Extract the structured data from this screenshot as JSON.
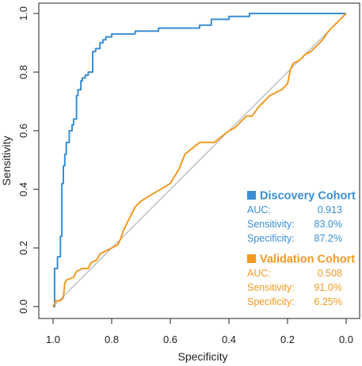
{
  "chart_data": {
    "type": "line",
    "xlabel": "Specificity",
    "ylabel": "Sensitivity",
    "xlim": [
      1.0,
      0.0
    ],
    "ylim": [
      0.0,
      1.0
    ],
    "x_ticks": [
      "1.0",
      "0.8",
      "0.6",
      "0.4",
      "0.2",
      "0.0"
    ],
    "y_ticks": [
      "0.0",
      "0.2",
      "0.4",
      "0.6",
      "0.8",
      "1.0"
    ],
    "x_tick_values": [
      1.0,
      0.8,
      0.6,
      0.4,
      0.2,
      0.0
    ],
    "y_tick_values": [
      0.0,
      0.2,
      0.4,
      0.6,
      0.8,
      1.0
    ],
    "grid": false,
    "legend_position": "bottom-right",
    "reference_line": {
      "from": [
        1.0,
        0.0
      ],
      "to": [
        0.0,
        1.0
      ],
      "color": "#a8a8a8"
    },
    "series": [
      {
        "name": "Discovery Cohort",
        "color": "#3a8ed3",
        "stats": [
          {
            "label": "AUC:",
            "value": "0.913"
          },
          {
            "label": "Sensitivity:",
            "value": "83.0%"
          },
          {
            "label": "Specificity:",
            "value": "87.2%"
          }
        ],
        "x": [
          1.0,
          0.995,
          0.995,
          0.985,
          0.985,
          0.975,
          0.975,
          0.97,
          0.97,
          0.965,
          0.965,
          0.96,
          0.96,
          0.955,
          0.955,
          0.945,
          0.945,
          0.935,
          0.935,
          0.93,
          0.93,
          0.92,
          0.92,
          0.915,
          0.915,
          0.905,
          0.905,
          0.9,
          0.9,
          0.89,
          0.89,
          0.88,
          0.88,
          0.865,
          0.865,
          0.855,
          0.855,
          0.84,
          0.84,
          0.83,
          0.83,
          0.82,
          0.82,
          0.8,
          0.8,
          0.72,
          0.72,
          0.64,
          0.64,
          0.5,
          0.5,
          0.46,
          0.46,
          0.4,
          0.4,
          0.33,
          0.33,
          0.0
        ],
        "y": [
          0.0,
          0.0,
          0.13,
          0.13,
          0.17,
          0.17,
          0.24,
          0.24,
          0.42,
          0.42,
          0.48,
          0.48,
          0.52,
          0.52,
          0.56,
          0.56,
          0.6,
          0.6,
          0.62,
          0.62,
          0.64,
          0.64,
          0.72,
          0.72,
          0.74,
          0.74,
          0.77,
          0.77,
          0.78,
          0.78,
          0.79,
          0.79,
          0.8,
          0.8,
          0.87,
          0.87,
          0.88,
          0.88,
          0.9,
          0.9,
          0.91,
          0.91,
          0.92,
          0.92,
          0.93,
          0.93,
          0.94,
          0.94,
          0.95,
          0.95,
          0.96,
          0.96,
          0.98,
          0.98,
          0.99,
          0.99,
          1.0,
          1.0
        ]
      },
      {
        "name": "Validation Cohort",
        "color": "#f19a22",
        "stats": [
          {
            "label": "AUC:",
            "value": "0.508"
          },
          {
            "label": "Sensitivity:",
            "value": "91.0%"
          },
          {
            "label": "Specificity:",
            "value": "6.25%"
          }
        ],
        "x": [
          1.0,
          0.995,
          0.99,
          0.975,
          0.965,
          0.96,
          0.955,
          0.93,
          0.92,
          0.9,
          0.88,
          0.87,
          0.85,
          0.84,
          0.82,
          0.8,
          0.78,
          0.77,
          0.76,
          0.74,
          0.72,
          0.7,
          0.65,
          0.6,
          0.57,
          0.55,
          0.5,
          0.45,
          0.4,
          0.38,
          0.36,
          0.34,
          0.32,
          0.3,
          0.28,
          0.26,
          0.24,
          0.22,
          0.2,
          0.19,
          0.18,
          0.16,
          0.14,
          0.12,
          0.1,
          0.08,
          0.06,
          0.04,
          0.02,
          0.0
        ],
        "y": [
          0.0,
          0.01,
          0.02,
          0.02,
          0.03,
          0.08,
          0.09,
          0.1,
          0.12,
          0.13,
          0.13,
          0.15,
          0.16,
          0.18,
          0.19,
          0.2,
          0.21,
          0.23,
          0.26,
          0.3,
          0.34,
          0.36,
          0.39,
          0.42,
          0.47,
          0.52,
          0.56,
          0.56,
          0.6,
          0.61,
          0.63,
          0.65,
          0.65,
          0.68,
          0.7,
          0.72,
          0.73,
          0.74,
          0.76,
          0.81,
          0.83,
          0.84,
          0.86,
          0.87,
          0.89,
          0.91,
          0.94,
          0.96,
          0.98,
          1.0
        ]
      }
    ]
  }
}
